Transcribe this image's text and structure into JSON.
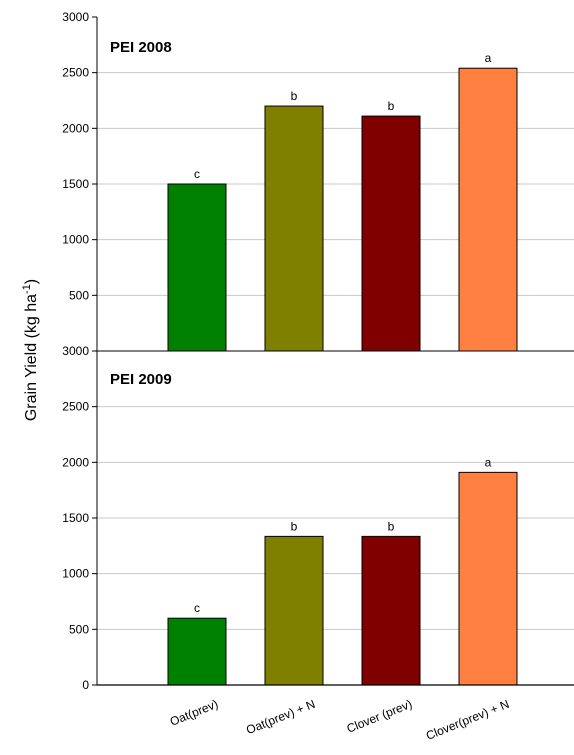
{
  "ylabel_main": "Grain Yield (kg ha",
  "ylabel_sup": "-1",
  "ylabel_close": ")",
  "categories": [
    "Oat(prev)",
    "Oat(prev) + N",
    "Clover (prev)",
    "Clover(prev) + N"
  ],
  "chart_data": [
    {
      "type": "bar",
      "title": "PEI 2008",
      "categories": [
        "Oat(prev)",
        "Oat(prev) + N",
        "Clover (prev)",
        "Clover(prev) + N"
      ],
      "values": [
        1500,
        2200,
        2110,
        2540
      ],
      "annotations": [
        "c",
        "b",
        "b",
        "a"
      ],
      "colors": [
        "#008000",
        "#808000",
        "#800000",
        "#ff8040"
      ],
      "ylim": [
        0,
        3000
      ],
      "yticks": [
        0,
        500,
        1000,
        1500,
        2000,
        2500,
        3000
      ],
      "ytick_labels": [
        "",
        "500",
        "1000",
        "1500",
        "2000",
        "2500",
        "3000"
      ],
      "grid": true,
      "ylabel": "Grain Yield (kg ha-1)"
    },
    {
      "type": "bar",
      "title": "PEI 2009",
      "categories": [
        "Oat(prev)",
        "Oat(prev) + N",
        "Clover (prev)",
        "Clover(prev) + N"
      ],
      "values": [
        600,
        1335,
        1335,
        1910
      ],
      "annotations": [
        "c",
        "b",
        "b",
        "a"
      ],
      "colors": [
        "#008000",
        "#808000",
        "#800000",
        "#ff8040"
      ],
      "ylim": [
        0,
        3000
      ],
      "yticks": [
        0,
        500,
        1000,
        1500,
        2000,
        2500,
        3000
      ],
      "ytick_labels": [
        "0",
        "500",
        "1000",
        "1500",
        "2000",
        "2500",
        "3000"
      ],
      "grid": true,
      "ylabel": "Grain Yield (kg ha-1)"
    }
  ]
}
